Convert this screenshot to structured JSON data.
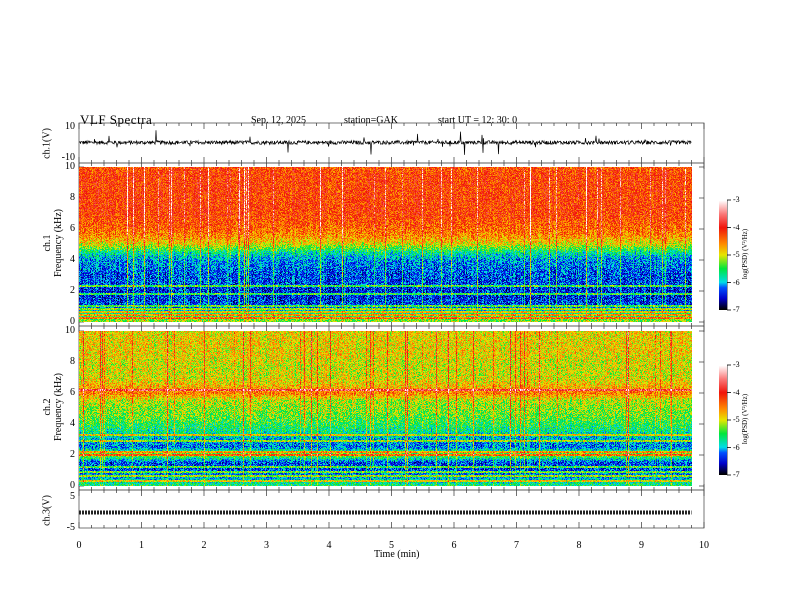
{
  "header": {
    "title": "VLF  Spectra",
    "date": "Sep. 12, 2025",
    "station": "station=GAK",
    "start": "start  UT  =   12: 30: 0"
  },
  "chart_data": [
    {
      "type": "line",
      "panel": "ch1-waveform",
      "ylabel": "ch.1(V)",
      "ylim": [
        -10,
        10
      ],
      "yticks": [
        "10",
        "-10"
      ],
      "xlim": [
        0,
        10
      ],
      "data_end_min": 9.8,
      "baseline_V": 0,
      "noise_amplitude_V": 1.2,
      "description_values": {
        "typical_spike_V": 8
      }
    },
    {
      "type": "heatmap",
      "panel": "ch1-spectrogram",
      "ylabel": "ch.1\nFrequency (kHz)",
      "ylabel_line1": "ch.1",
      "ylabel_line2": "Frequency  (kHz)",
      "ylim": [
        0,
        10
      ],
      "yticks": [
        "0",
        "2",
        "4",
        "6",
        "8",
        "10"
      ],
      "xlim": [
        0,
        10
      ],
      "data_end_min": 9.8,
      "freq_kHz": [
        0,
        0.5,
        1,
        1.5,
        2,
        2.5,
        3,
        3.5,
        4,
        4.5,
        5,
        5.5,
        6,
        6.5,
        7,
        7.5,
        8,
        8.5,
        9,
        9.5,
        10
      ],
      "mean_log_psd": [
        -5.2,
        -5.6,
        -6.3,
        -6.4,
        -6.4,
        -6.3,
        -6.3,
        -6.2,
        -6.1,
        -5.7,
        -5.0,
        -4.6,
        -4.4,
        -4.3,
        -4.2,
        -4.2,
        -4.2,
        -4.2,
        -4.2,
        -4.2,
        -4.3
      ],
      "horizontal_lines_kHz": [
        0.2,
        0.4,
        0.6,
        0.8,
        1.0,
        1.8,
        2.3
      ],
      "colorbar": {
        "label": "log(PSD) (V²/Hz)",
        "range": [
          -7,
          -3
        ],
        "ticks": [
          "-3",
          "-4",
          "-5",
          "-6",
          "-7"
        ]
      }
    },
    {
      "type": "heatmap",
      "panel": "ch2-spectrogram",
      "ylabel_line1": "ch.2",
      "ylabel_line2": "Frequency  (kHz)",
      "ylim": [
        0,
        10
      ],
      "yticks": [
        "0",
        "2",
        "4",
        "6",
        "8",
        "10"
      ],
      "xlim": [
        0,
        10
      ],
      "data_end_min": 9.8,
      "freq_kHz": [
        0,
        0.5,
        1,
        1.5,
        2,
        2.5,
        3,
        3.5,
        4,
        4.5,
        5,
        5.5,
        6,
        6.5,
        7,
        7.5,
        8,
        8.5,
        9,
        9.5,
        10
      ],
      "mean_log_psd": [
        -5.6,
        -6.0,
        -6.3,
        -6.3,
        -5.2,
        -6.2,
        -6.0,
        -5.7,
        -5.5,
        -5.3,
        -5.2,
        -5.1,
        -4.5,
        -4.8,
        -5.0,
        -5.0,
        -5.0,
        -4.9,
        -4.9,
        -4.9,
        -4.9
      ],
      "horizontal_lines_kHz": [
        0.3,
        0.6,
        0.9,
        1.2,
        2.0,
        2.2,
        2.9,
        3.3,
        6.2
      ],
      "colorbar": {
        "label": "log(PSD) (V²/Hz)",
        "range": [
          -7,
          -3
        ],
        "ticks": [
          "-3",
          "-4",
          "-5",
          "-6",
          "-7"
        ]
      }
    },
    {
      "type": "line",
      "panel": "ch3-waveform",
      "ylabel": "ch.3(V)",
      "ylim": [
        -5,
        5
      ],
      "yticks": [
        "5",
        "-5"
      ],
      "xlim": [
        0,
        10
      ],
      "data_end_min": 9.8,
      "baseline_V": 0
    }
  ],
  "xaxis": {
    "label": "Time  (min)",
    "ticks": [
      "0",
      "1",
      "2",
      "3",
      "4",
      "5",
      "6",
      "7",
      "8",
      "9",
      "10"
    ]
  }
}
